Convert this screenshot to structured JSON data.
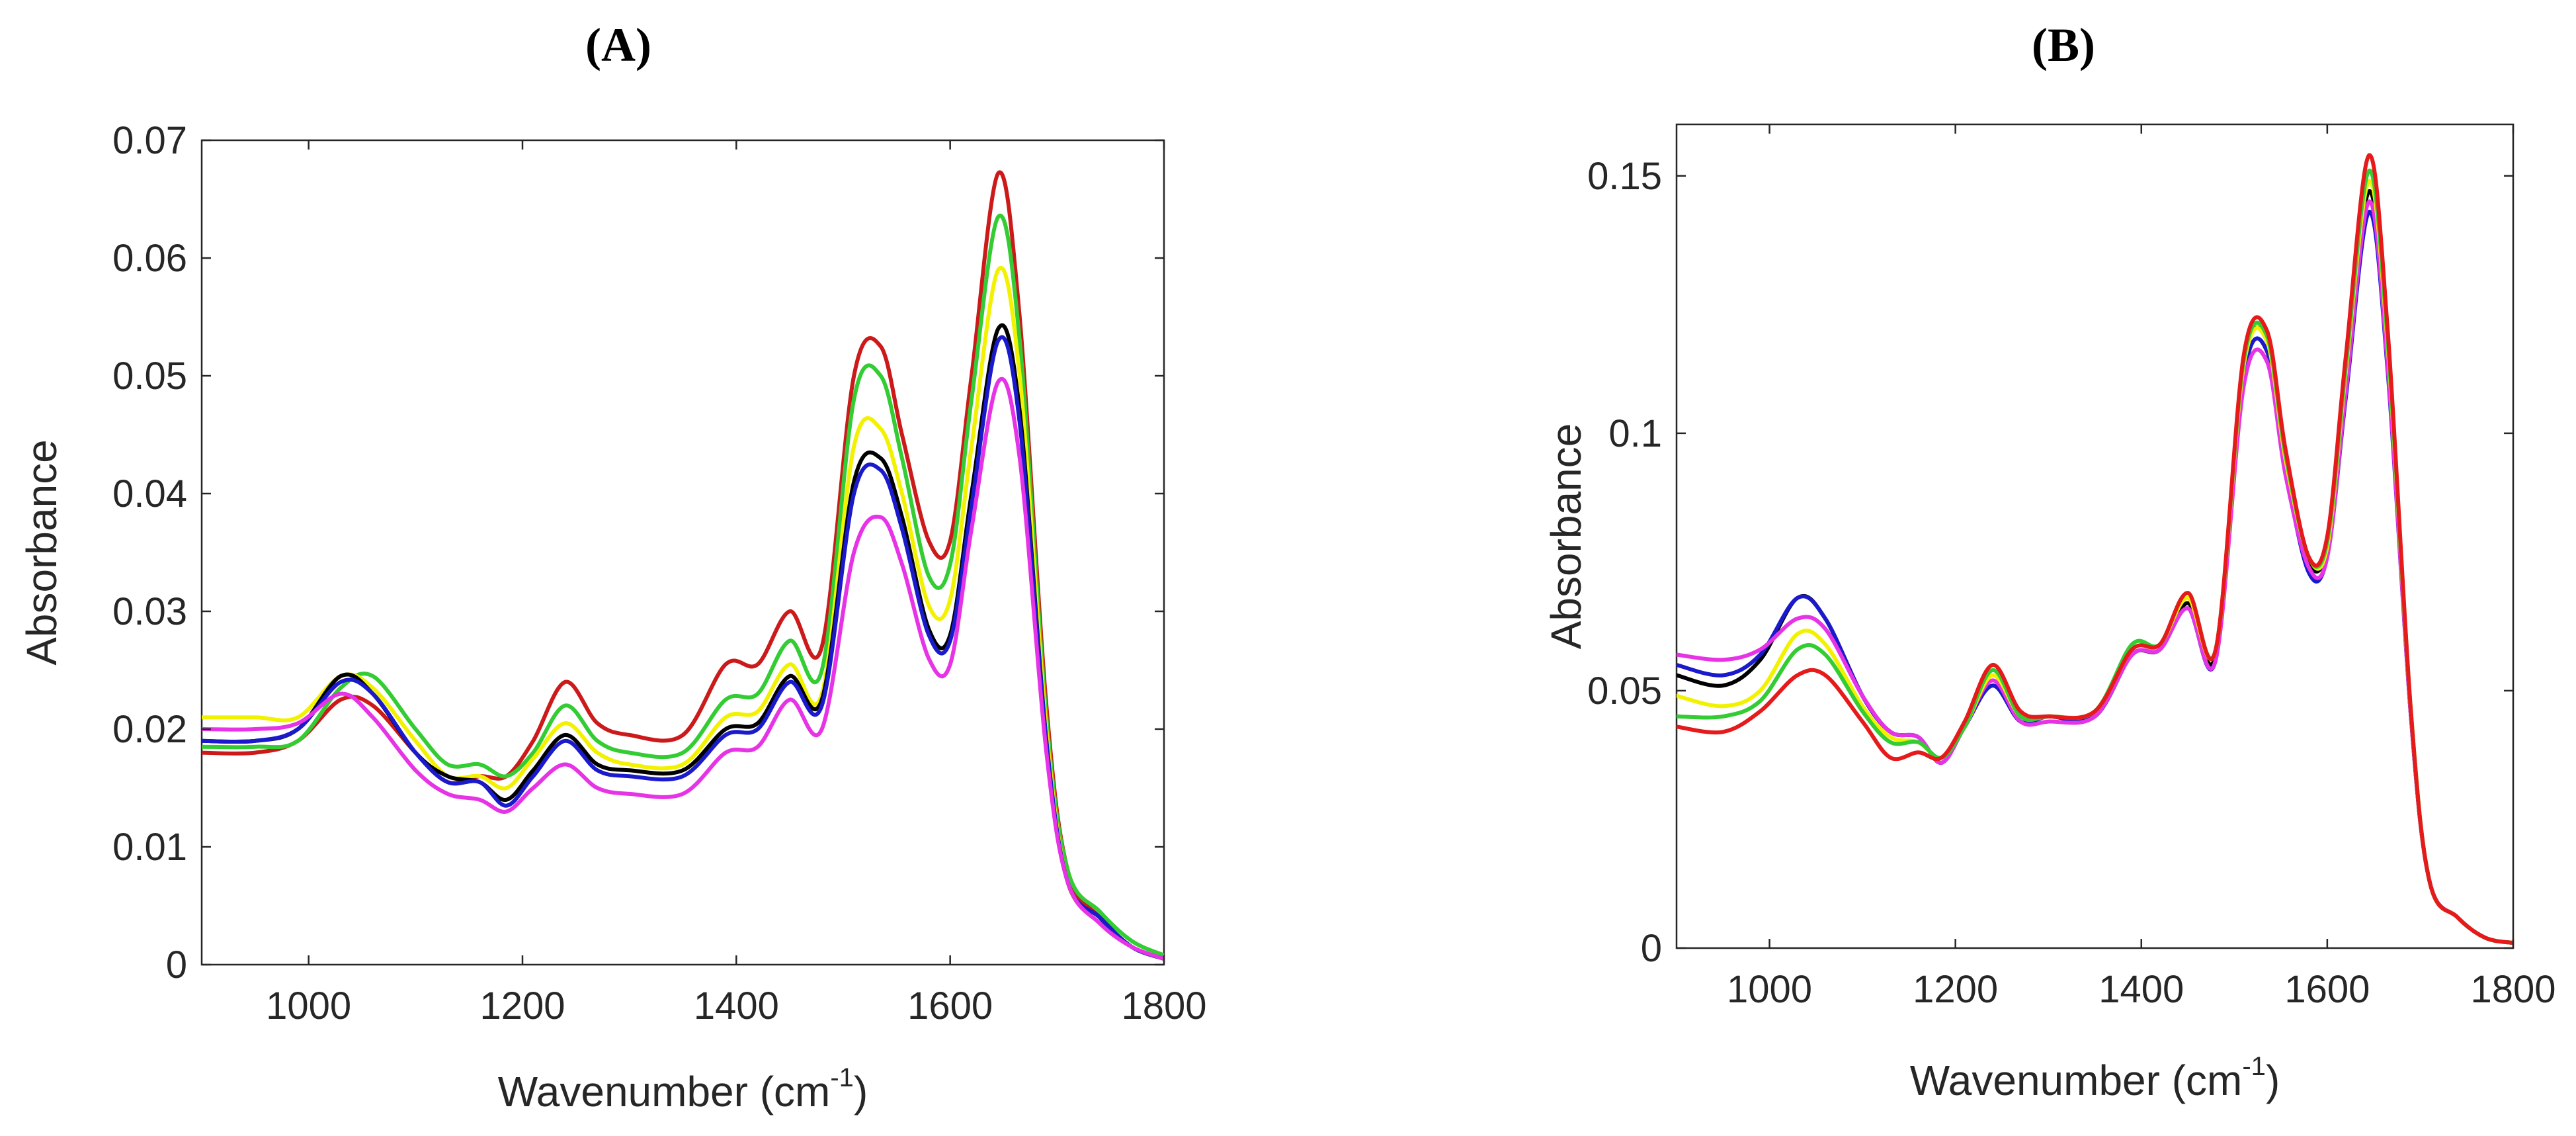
{
  "chart_data": [
    {
      "type": "line",
      "panel_label": "(A)",
      "xlabel": "Wavenumber (cm",
      "xlabel_sup": "-1",
      "xlabel_close": ")",
      "ylabel": "Absorbance",
      "xlim": [
        900,
        1800
      ],
      "ylim": [
        0,
        0.07
      ],
      "xticks": [
        1000,
        1200,
        1400,
        1600,
        1800
      ],
      "xtick_labels": [
        "1000",
        "1200",
        "1400",
        "1600",
        "1800"
      ],
      "yticks": [
        0,
        0.01,
        0.02,
        0.03,
        0.04,
        0.05,
        0.06,
        0.07
      ],
      "ytick_labels": [
        "0",
        "0.01",
        "0.02",
        "0.03",
        "0.04",
        "0.05",
        "0.06",
        "0.07"
      ],
      "x": [
        900,
        950,
        990,
        1030,
        1060,
        1100,
        1130,
        1160,
        1185,
        1210,
        1240,
        1270,
        1300,
        1350,
        1390,
        1420,
        1450,
        1480,
        1510,
        1535,
        1555,
        1580,
        1600,
        1620,
        1645,
        1665,
        1690,
        1710,
        1740,
        1770,
        1800
      ],
      "series": [
        {
          "name": "series-red",
          "color": "#cc1a1a",
          "values": [
            0.018,
            0.018,
            0.019,
            0.0225,
            0.022,
            0.018,
            0.0155,
            0.016,
            0.016,
            0.019,
            0.024,
            0.0205,
            0.0195,
            0.0195,
            0.0255,
            0.0255,
            0.03,
            0.027,
            0.05,
            0.0525,
            0.045,
            0.036,
            0.036,
            0.05,
            0.0672,
            0.055,
            0.022,
            0.008,
            0.004,
            0.0015,
            0.0005
          ]
        },
        {
          "name": "series-green",
          "color": "#33cc33",
          "values": [
            0.0185,
            0.0185,
            0.019,
            0.0235,
            0.0245,
            0.02,
            0.017,
            0.017,
            0.016,
            0.018,
            0.022,
            0.019,
            0.018,
            0.018,
            0.0225,
            0.023,
            0.0275,
            0.025,
            0.048,
            0.05,
            0.043,
            0.033,
            0.034,
            0.048,
            0.0635,
            0.053,
            0.021,
            0.008,
            0.0045,
            0.002,
            0.0008
          ]
        },
        {
          "name": "series-yellow",
          "color": "#f2f200",
          "values": [
            0.021,
            0.021,
            0.021,
            0.0245,
            0.0235,
            0.019,
            0.016,
            0.016,
            0.015,
            0.0175,
            0.0205,
            0.018,
            0.017,
            0.017,
            0.021,
            0.0215,
            0.0255,
            0.023,
            0.044,
            0.0455,
            0.04,
            0.0305,
            0.031,
            0.044,
            0.059,
            0.05,
            0.02,
            0.007,
            0.004,
            0.0015,
            0.0005
          ]
        },
        {
          "name": "series-black",
          "color": "#000000",
          "values": [
            0.019,
            0.019,
            0.02,
            0.0245,
            0.023,
            0.018,
            0.016,
            0.0155,
            0.014,
            0.0165,
            0.0195,
            0.017,
            0.0165,
            0.0165,
            0.02,
            0.0205,
            0.0245,
            0.0225,
            0.041,
            0.043,
            0.038,
            0.0285,
            0.028,
            0.04,
            0.054,
            0.047,
            0.019,
            0.007,
            0.004,
            0.0015,
            0.0005
          ]
        },
        {
          "name": "series-blue",
          "color": "#1a1acc",
          "values": [
            0.019,
            0.019,
            0.02,
            0.024,
            0.023,
            0.018,
            0.0155,
            0.0155,
            0.0135,
            0.016,
            0.019,
            0.0165,
            0.016,
            0.016,
            0.0195,
            0.02,
            0.024,
            0.022,
            0.04,
            0.042,
            0.037,
            0.028,
            0.0275,
            0.039,
            0.053,
            0.046,
            0.019,
            0.007,
            0.004,
            0.0015,
            0.0005
          ]
        },
        {
          "name": "series-magenta",
          "color": "#e633e6",
          "values": [
            0.02,
            0.02,
            0.0205,
            0.023,
            0.021,
            0.0165,
            0.0145,
            0.014,
            0.013,
            0.015,
            0.017,
            0.015,
            0.0145,
            0.0145,
            0.018,
            0.0185,
            0.0225,
            0.02,
            0.035,
            0.038,
            0.034,
            0.026,
            0.0255,
            0.037,
            0.0495,
            0.043,
            0.018,
            0.007,
            0.0035,
            0.0015,
            0.0005
          ]
        }
      ]
    },
    {
      "type": "line",
      "panel_label": "(B)",
      "xlabel": "Wavenumber (cm",
      "xlabel_sup": "-1",
      "xlabel_close": ")",
      "ylabel": "Absorbance",
      "xlim": [
        900,
        1800
      ],
      "ylim": [
        0,
        0.16
      ],
      "xticks": [
        1000,
        1200,
        1400,
        1600,
        1800
      ],
      "xtick_labels": [
        "1000",
        "1200",
        "1400",
        "1600",
        "1800"
      ],
      "yticks": [
        0,
        0.05,
        0.1,
        0.15
      ],
      "ytick_labels": [
        "0",
        "0.05",
        "0.1",
        "0.15"
      ],
      "x": [
        900,
        950,
        990,
        1030,
        1060,
        1100,
        1130,
        1160,
        1185,
        1210,
        1240,
        1270,
        1300,
        1350,
        1390,
        1420,
        1450,
        1480,
        1510,
        1535,
        1555,
        1580,
        1600,
        1620,
        1645,
        1665,
        1690,
        1710,
        1740,
        1770,
        1800
      ],
      "series": [
        {
          "name": "series-black",
          "color": "#000000",
          "values": [
            0.053,
            0.051,
            0.056,
            0.068,
            0.064,
            0.049,
            0.042,
            0.041,
            0.036,
            0.043,
            0.051,
            0.044,
            0.045,
            0.045,
            0.057,
            0.058,
            0.067,
            0.057,
            0.113,
            0.118,
            0.095,
            0.075,
            0.078,
            0.11,
            0.147,
            0.115,
            0.045,
            0.013,
            0.006,
            0.002,
            0.001
          ]
        },
        {
          "name": "series-blue",
          "color": "#1a1acc",
          "values": [
            0.055,
            0.053,
            0.057,
            0.068,
            0.064,
            0.049,
            0.042,
            0.041,
            0.036,
            0.043,
            0.051,
            0.044,
            0.045,
            0.045,
            0.057,
            0.058,
            0.066,
            0.056,
            0.111,
            0.116,
            0.093,
            0.073,
            0.076,
            0.107,
            0.143,
            0.112,
            0.045,
            0.013,
            0.006,
            0.002,
            0.001
          ]
        },
        {
          "name": "series-magenta",
          "color": "#e633e6",
          "values": [
            0.057,
            0.056,
            0.058,
            0.064,
            0.062,
            0.049,
            0.042,
            0.041,
            0.036,
            0.043,
            0.052,
            0.044,
            0.044,
            0.045,
            0.057,
            0.058,
            0.066,
            0.056,
            0.109,
            0.114,
            0.092,
            0.074,
            0.076,
            0.108,
            0.145,
            0.113,
            0.045,
            0.013,
            0.006,
            0.002,
            0.001
          ]
        },
        {
          "name": "series-yellow",
          "color": "#f2f200",
          "values": [
            0.049,
            0.047,
            0.05,
            0.061,
            0.059,
            0.047,
            0.041,
            0.04,
            0.037,
            0.043,
            0.053,
            0.045,
            0.045,
            0.046,
            0.058,
            0.059,
            0.068,
            0.058,
            0.113,
            0.118,
            0.095,
            0.076,
            0.078,
            0.112,
            0.149,
            0.117,
            0.046,
            0.013,
            0.006,
            0.002,
            0.001
          ]
        },
        {
          "name": "series-green",
          "color": "#33cc33",
          "values": [
            0.045,
            0.045,
            0.048,
            0.058,
            0.057,
            0.046,
            0.04,
            0.04,
            0.037,
            0.043,
            0.054,
            0.045,
            0.045,
            0.046,
            0.059,
            0.059,
            0.069,
            0.058,
            0.114,
            0.119,
            0.096,
            0.076,
            0.079,
            0.113,
            0.151,
            0.118,
            0.046,
            0.013,
            0.006,
            0.002,
            0.001
          ]
        },
        {
          "name": "series-red",
          "color": "#e61a1a",
          "values": [
            0.043,
            0.042,
            0.046,
            0.053,
            0.053,
            0.044,
            0.037,
            0.038,
            0.037,
            0.044,
            0.055,
            0.046,
            0.045,
            0.046,
            0.058,
            0.059,
            0.069,
            0.058,
            0.115,
            0.12,
            0.097,
            0.076,
            0.08,
            0.115,
            0.154,
            0.12,
            0.046,
            0.013,
            0.006,
            0.002,
            0.001
          ]
        }
      ]
    }
  ]
}
